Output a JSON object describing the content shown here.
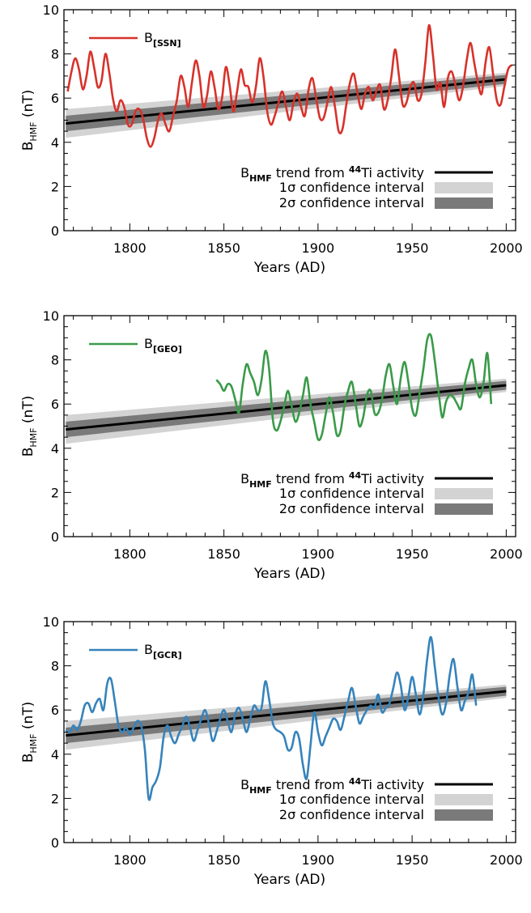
{
  "chart_data": [
    {
      "type": "line",
      "xlabel": "Years (AD)",
      "ylabel": "B",
      "ylabel_sub": "HMF",
      "ylabel_unit": "(nT)",
      "xlim": [
        1765,
        2005
      ],
      "ylim": [
        0,
        10
      ],
      "xticks": [
        1800,
        1850,
        1900,
        1950,
        2000
      ],
      "yticks": [
        0,
        2,
        4,
        6,
        8,
        10
      ],
      "trend": {
        "x": [
          1766,
          2000
        ],
        "y": [
          4.85,
          6.85
        ],
        "sigma1": [
          0.35,
          0.2
        ],
        "sigma2": [
          0.65,
          0.3
        ]
      },
      "legend": {
        "series_main": "B",
        "series_sub": "[SSN]",
        "trend_main": "B",
        "trend_sub": "HMF",
        "trend_text": " trend from ",
        "trend_sup": "44",
        "trend_text2": "Ti activity",
        "sigma1": "1σ confidence interval",
        "sigma2": "2σ confidence interval"
      },
      "series": [
        {
          "name": "B[SSN]",
          "color": "#d7322a",
          "x": [
            1767,
            1769,
            1771,
            1773,
            1775,
            1777,
            1779,
            1781,
            1783,
            1785,
            1787,
            1789,
            1791,
            1793,
            1795,
            1797,
            1799,
            1801,
            1803,
            1805,
            1807,
            1809,
            1811,
            1813,
            1815,
            1817,
            1819,
            1821,
            1823,
            1825,
            1827,
            1829,
            1831,
            1833,
            1835,
            1837,
            1839,
            1841,
            1843,
            1845,
            1847,
            1849,
            1851,
            1853,
            1855,
            1857,
            1859,
            1861,
            1863,
            1865,
            1867,
            1869,
            1871,
            1873,
            1875,
            1877,
            1879,
            1881,
            1883,
            1885,
            1887,
            1889,
            1891,
            1893,
            1895,
            1897,
            1899,
            1901,
            1903,
            1905,
            1907,
            1909,
            1911,
            1913,
            1915,
            1917,
            1919,
            1921,
            1923,
            1925,
            1927,
            1929,
            1931,
            1933,
            1935,
            1937,
            1939,
            1941,
            1943,
            1945,
            1947,
            1949,
            1951,
            1953,
            1955,
            1957,
            1959,
            1961,
            1963,
            1965,
            1967,
            1969,
            1971,
            1973,
            1975,
            1977,
            1979,
            1981,
            1983,
            1985,
            1987,
            1989,
            1991,
            1993,
            1995,
            1997,
            1999,
            2001,
            2003
          ],
          "y": [
            6.3,
            7.2,
            7.8,
            7.3,
            6.4,
            7.0,
            8.1,
            7.4,
            6.5,
            6.8,
            8.0,
            7.2,
            6.0,
            5.4,
            5.9,
            5.6,
            4.8,
            4.8,
            5.4,
            5.5,
            5.1,
            4.2,
            3.8,
            4.2,
            5.0,
            5.3,
            4.8,
            4.5,
            5.2,
            5.9,
            7.0,
            6.5,
            5.6,
            6.7,
            7.7,
            7.0,
            5.6,
            6.1,
            7.2,
            6.5,
            5.5,
            6.0,
            7.4,
            6.6,
            5.4,
            6.3,
            7.3,
            6.6,
            6.5,
            5.8,
            6.5,
            7.8,
            7.0,
            5.4,
            4.8,
            5.2,
            5.8,
            6.3,
            5.6,
            5.0,
            5.8,
            6.2,
            5.6,
            5.2,
            6.4,
            6.9,
            6.0,
            5.1,
            5.1,
            5.8,
            6.5,
            5.6,
            4.5,
            4.6,
            5.7,
            6.7,
            7.1,
            6.2,
            5.5,
            6.2,
            6.5,
            5.9,
            6.3,
            6.6,
            5.5,
            5.9,
            7.0,
            8.2,
            7.0,
            5.7,
            5.8,
            6.5,
            6.7,
            5.9,
            6.2,
            7.6,
            9.3,
            8.0,
            6.4,
            6.7,
            5.6,
            6.9,
            7.2,
            6.6,
            5.9,
            6.5,
            7.7,
            8.5,
            7.6,
            6.7,
            6.2,
            7.6,
            8.3,
            7.1,
            5.9,
            5.7,
            6.5,
            7.3,
            7.5
          ]
        }
      ]
    },
    {
      "type": "line",
      "xlabel": "Years (AD)",
      "ylabel": "B",
      "ylabel_sub": "HMF",
      "ylabel_unit": "(nT)",
      "xlim": [
        1765,
        2005
      ],
      "ylim": [
        0,
        10
      ],
      "xticks": [
        1800,
        1850,
        1900,
        1950,
        2000
      ],
      "yticks": [
        0,
        2,
        4,
        6,
        8,
        10
      ],
      "trend": {
        "x": [
          1766,
          2000
        ],
        "y": [
          4.85,
          6.85
        ],
        "sigma1": [
          0.35,
          0.2
        ],
        "sigma2": [
          0.65,
          0.3
        ]
      },
      "legend": {
        "series_main": "B",
        "series_sub": "[GEO]",
        "trend_main": "B",
        "trend_sub": "HMF",
        "trend_text": " trend from ",
        "trend_sup": "44",
        "trend_text2": "Ti activity",
        "sigma1": "1σ confidence interval",
        "sigma2": "2σ confidence interval"
      },
      "series": [
        {
          "name": "B[GEO]",
          "color": "#3a9a49",
          "x": [
            1846,
            1848,
            1850,
            1852,
            1854,
            1856,
            1858,
            1860,
            1862,
            1864,
            1866,
            1868,
            1870,
            1872,
            1874,
            1876,
            1878,
            1880,
            1882,
            1884,
            1886,
            1888,
            1890,
            1892,
            1894,
            1896,
            1898,
            1900,
            1902,
            1904,
            1906,
            1908,
            1910,
            1912,
            1914,
            1916,
            1918,
            1920,
            1922,
            1924,
            1926,
            1928,
            1930,
            1932,
            1934,
            1936,
            1938,
            1940,
            1942,
            1944,
            1946,
            1948,
            1950,
            1952,
            1954,
            1956,
            1958,
            1960,
            1962,
            1964,
            1966,
            1968,
            1970,
            1972,
            1974,
            1976,
            1978,
            1980,
            1982,
            1984,
            1986,
            1988,
            1990,
            1992
          ],
          "y": [
            7.1,
            6.9,
            6.6,
            6.9,
            6.8,
            6.2,
            5.6,
            6.9,
            7.8,
            7.4,
            7.0,
            6.4,
            7.1,
            8.4,
            7.6,
            5.3,
            4.8,
            5.2,
            5.9,
            6.6,
            5.9,
            5.2,
            5.6,
            6.4,
            7.2,
            6.0,
            5.2,
            4.4,
            4.6,
            5.5,
            6.3,
            5.6,
            4.6,
            4.8,
            5.9,
            6.6,
            7.0,
            6.0,
            5.0,
            5.4,
            6.4,
            6.6,
            5.6,
            5.6,
            6.2,
            7.3,
            7.8,
            6.8,
            6.0,
            7.2,
            7.9,
            7.0,
            5.8,
            5.5,
            6.5,
            7.6,
            8.9,
            9.1,
            8.0,
            6.6,
            5.4,
            6.1,
            6.4,
            6.3,
            6.0,
            5.8,
            6.9,
            7.6,
            8.0,
            6.9,
            6.3,
            7.0,
            8.3,
            6.0
          ]
        }
      ]
    },
    {
      "type": "line",
      "xlabel": "Years (AD)",
      "ylabel": "B",
      "ylabel_sub": "HMF",
      "ylabel_unit": "(nT)",
      "xlim": [
        1765,
        2005
      ],
      "ylim": [
        0,
        10
      ],
      "xticks": [
        1800,
        1850,
        1900,
        1950,
        2000
      ],
      "yticks": [
        0,
        2,
        4,
        6,
        8,
        10
      ],
      "trend": {
        "x": [
          1766,
          2000
        ],
        "y": [
          4.85,
          6.85
        ],
        "sigma1": [
          0.35,
          0.2
        ],
        "sigma2": [
          0.65,
          0.3
        ]
      },
      "legend": {
        "series_main": "B",
        "series_sub": "[GCR]",
        "trend_main": "B",
        "trend_sub": "HMF",
        "trend_text": " trend from ",
        "trend_sup": "44",
        "trend_text2": "Ti activity",
        "sigma1": "1σ confidence interval",
        "sigma2": "2σ confidence interval"
      },
      "series": [
        {
          "name": "B[GCR]",
          "color": "#3683bb",
          "x": [
            1766,
            1768,
            1770,
            1772,
            1774,
            1776,
            1778,
            1780,
            1782,
            1784,
            1786,
            1788,
            1790,
            1792,
            1794,
            1796,
            1798,
            1800,
            1802,
            1804,
            1806,
            1808,
            1810,
            1812,
            1814,
            1816,
            1818,
            1820,
            1822,
            1824,
            1826,
            1828,
            1830,
            1832,
            1834,
            1836,
            1838,
            1840,
            1842,
            1844,
            1846,
            1848,
            1850,
            1852,
            1854,
            1856,
            1858,
            1860,
            1862,
            1864,
            1866,
            1868,
            1870,
            1872,
            1874,
            1876,
            1878,
            1880,
            1882,
            1884,
            1886,
            1888,
            1890,
            1892,
            1894,
            1896,
            1898,
            1900,
            1902,
            1904,
            1906,
            1908,
            1910,
            1912,
            1914,
            1916,
            1918,
            1920,
            1922,
            1924,
            1926,
            1928,
            1930,
            1932,
            1934,
            1936,
            1938,
            1940,
            1942,
            1944,
            1946,
            1948,
            1950,
            1952,
            1954,
            1956,
            1958,
            1960,
            1962,
            1964,
            1966,
            1968,
            1970,
            1972,
            1974,
            1976,
            1978,
            1980,
            1982,
            1984
          ],
          "y": [
            5.1,
            5.0,
            5.3,
            5.1,
            5.5,
            6.2,
            6.3,
            5.9,
            6.3,
            6.5,
            6.0,
            7.2,
            7.4,
            6.4,
            5.3,
            5.0,
            5.2,
            4.9,
            5.2,
            5.5,
            5.3,
            4.2,
            2.0,
            2.5,
            2.8,
            3.4,
            4.8,
            5.3,
            4.8,
            4.5,
            4.9,
            5.3,
            5.7,
            5.2,
            4.6,
            5.1,
            5.6,
            6.0,
            5.4,
            4.6,
            5.0,
            5.6,
            6.0,
            5.5,
            5.0,
            5.8,
            6.1,
            5.6,
            5.0,
            5.6,
            6.2,
            6.0,
            6.1,
            7.3,
            6.5,
            5.4,
            5.1,
            5.0,
            4.8,
            4.2,
            4.3,
            5.0,
            4.7,
            3.5,
            2.9,
            4.4,
            5.9,
            5.0,
            4.4,
            4.8,
            5.2,
            5.6,
            5.5,
            5.1,
            5.7,
            6.4,
            7.0,
            6.2,
            5.4,
            5.7,
            6.0,
            6.2,
            6.1,
            6.7,
            5.9,
            6.1,
            6.3,
            7.0,
            7.7,
            7.1,
            6.0,
            6.6,
            7.5,
            6.7,
            5.8,
            6.7,
            8.3,
            9.3,
            8.0,
            6.6,
            5.8,
            6.3,
            7.6,
            8.3,
            7.1,
            6.0,
            6.4,
            6.8,
            7.6,
            6.2
          ]
        }
      ]
    }
  ]
}
